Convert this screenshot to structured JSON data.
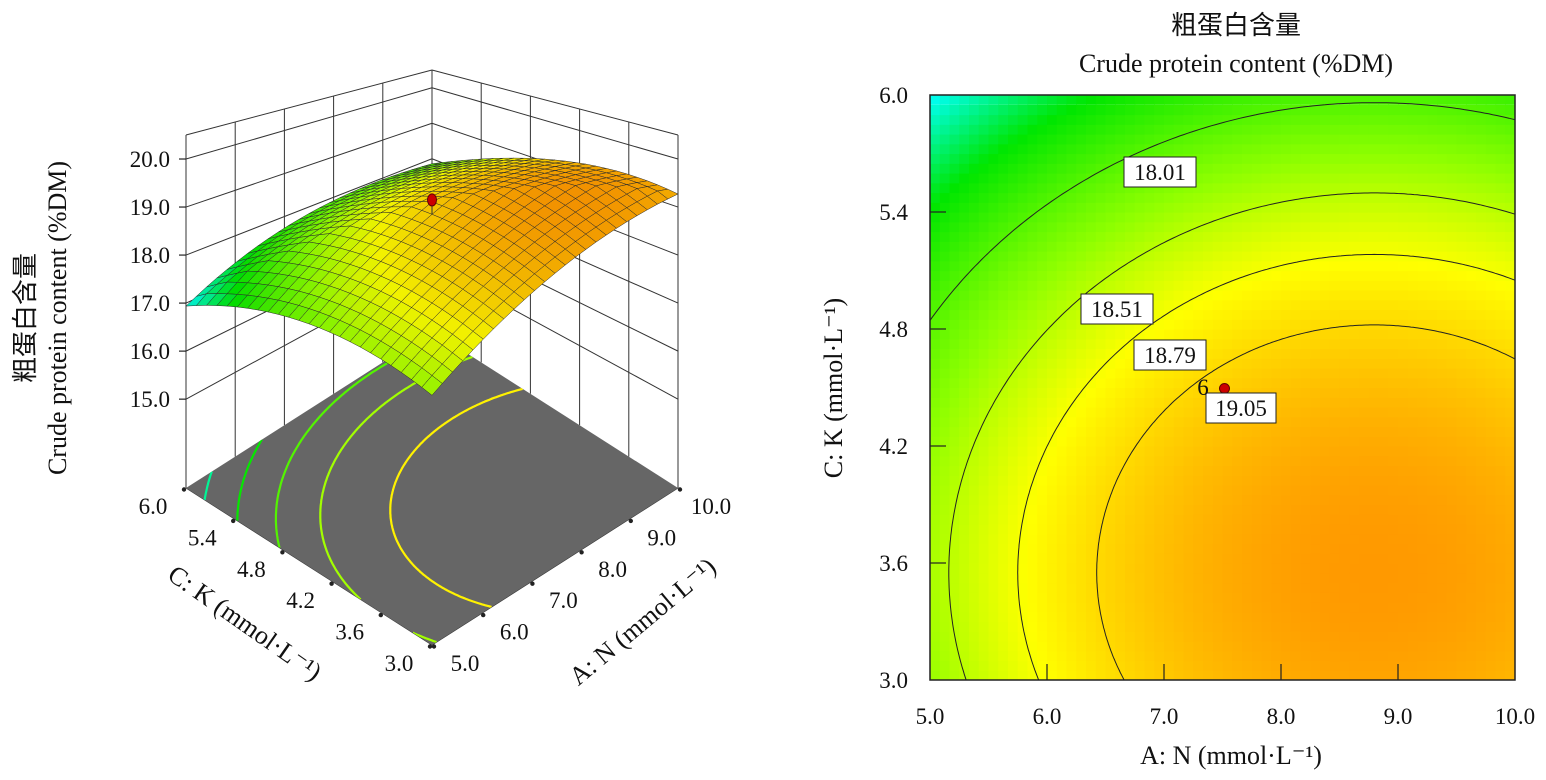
{
  "chart_data": [
    {
      "type": "surface3d",
      "zlabel_cn": "粗蛋白含量",
      "zlabel": "Crude protein content (%DM)",
      "xlabel": "A: N (mmol·L⁻¹)",
      "ylabel": "C: K (mmol·L⁻¹)",
      "x_ticks": [
        "5.0",
        "6.0",
        "7.0",
        "8.0",
        "9.0",
        "10.0"
      ],
      "y_ticks": [
        "3.0",
        "3.6",
        "4.2",
        "4.8",
        "5.4",
        "6.0"
      ],
      "z_ticks": [
        "15.0",
        "16.0",
        "17.0",
        "18.0",
        "19.0",
        "20.0"
      ],
      "xlim": [
        5,
        10
      ],
      "ylim": [
        3,
        6
      ],
      "zlim": [
        13.15,
        20.5
      ],
      "floor_color": "#666666",
      "floor_contour_levels": [
        17.2,
        17.6,
        18.0,
        18.4,
        18.9
      ],
      "design_point": {
        "A": 7.5,
        "C": 4.5,
        "color": "#cc0000"
      },
      "grid": {
        "A": [
          5,
          6,
          7,
          8,
          9,
          10
        ],
        "C": [
          3,
          3.6,
          4.2,
          4.8,
          5.4,
          6
        ],
        "z": [
          [
            18.35,
            18.82,
            19.15,
            19.33,
            19.37,
            19.27
          ],
          [
            18.42,
            18.89,
            19.22,
            19.4,
            19.45,
            19.35
          ],
          [
            18.32,
            18.79,
            19.12,
            19.3,
            19.34,
            19.24
          ],
          [
            18.04,
            18.51,
            18.83,
            19.02,
            19.06,
            18.96
          ],
          [
            17.58,
            18.04,
            18.37,
            18.56,
            18.6,
            18.5
          ],
          [
            16.94,
            17.4,
            17.73,
            17.92,
            17.96,
            17.86
          ]
        ]
      },
      "colormap": [
        "#00ffff",
        "#00e600",
        "#90ff00",
        "#ffff00",
        "#ff9900"
      ]
    },
    {
      "type": "contour",
      "title_cn": "粗蛋白含量",
      "title": "Crude protein content (%DM)",
      "xlabel": "A: N (mmol·L⁻¹)",
      "ylabel": "C: K (mmol·L⁻¹)",
      "x_ticks": [
        "5.0",
        "6.0",
        "7.0",
        "8.0",
        "9.0",
        "10.0"
      ],
      "y_ticks": [
        "3.0",
        "3.6",
        "4.2",
        "4.8",
        "5.4",
        "6.0"
      ],
      "xlim": [
        5,
        10
      ],
      "ylim": [
        3,
        6
      ],
      "contour_levels": [
        18.01,
        18.51,
        18.79,
        19.05
      ],
      "contour_labels": [
        "18.01",
        "18.51",
        "18.79",
        "19.05"
      ],
      "design_point": {
        "A": 7.5,
        "C": 4.5,
        "label": "6",
        "color": "#cc0000"
      }
    }
  ]
}
